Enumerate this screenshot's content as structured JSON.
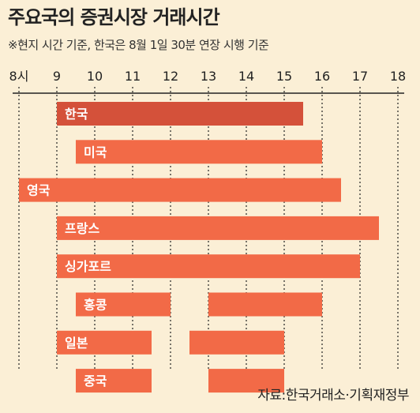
{
  "title": "주요국의 증권시장 거래시간",
  "subtitle": "※현지 시간 기준, 한국은 8월 1일 30분 연장 시행 기준",
  "source": "자료:한국거래소·기획재정부",
  "colors": {
    "background": "#fbefd6",
    "bar": "#f26a47",
    "bar_highlight": "#d4513a",
    "axis": "#222222"
  },
  "chart_data": {
    "type": "bar",
    "orientation": "horizontal-range",
    "title": "주요국의 증권시장 거래시간",
    "xlim": [
      8,
      18
    ],
    "x_ticks": [
      {
        "value": 8,
        "label": "8시"
      },
      {
        "value": 9,
        "label": "9"
      },
      {
        "value": 10,
        "label": "10"
      },
      {
        "value": 11,
        "label": "11"
      },
      {
        "value": 12,
        "label": "12"
      },
      {
        "value": 13,
        "label": "13"
      },
      {
        "value": 14,
        "label": "14"
      },
      {
        "value": 15,
        "label": "15"
      },
      {
        "value": 16,
        "label": "16"
      },
      {
        "value": 17,
        "label": "17"
      },
      {
        "value": 18,
        "label": "18"
      }
    ],
    "grid": true,
    "categories": [
      "한국",
      "미국",
      "영국",
      "프랑스",
      "싱가포르",
      "홍콩",
      "일본",
      "중국"
    ],
    "rows": [
      {
        "label": "한국",
        "highlight": true,
        "sessions": [
          [
            9.0,
            15.5
          ]
        ]
      },
      {
        "label": "미국",
        "sessions": [
          [
            9.5,
            16.0
          ]
        ]
      },
      {
        "label": "영국",
        "sessions": [
          [
            8.0,
            16.5
          ]
        ]
      },
      {
        "label": "프랑스",
        "sessions": [
          [
            9.0,
            17.5
          ]
        ]
      },
      {
        "label": "싱가포르",
        "sessions": [
          [
            9.0,
            17.0
          ]
        ]
      },
      {
        "label": "홍콩",
        "sessions": [
          [
            9.5,
            12.0
          ],
          [
            13.0,
            16.0
          ]
        ]
      },
      {
        "label": "일본",
        "sessions": [
          [
            9.0,
            11.5
          ],
          [
            12.5,
            15.0
          ]
        ]
      },
      {
        "label": "중국",
        "sessions": [
          [
            9.5,
            11.5
          ],
          [
            13.0,
            15.0
          ]
        ]
      }
    ]
  }
}
